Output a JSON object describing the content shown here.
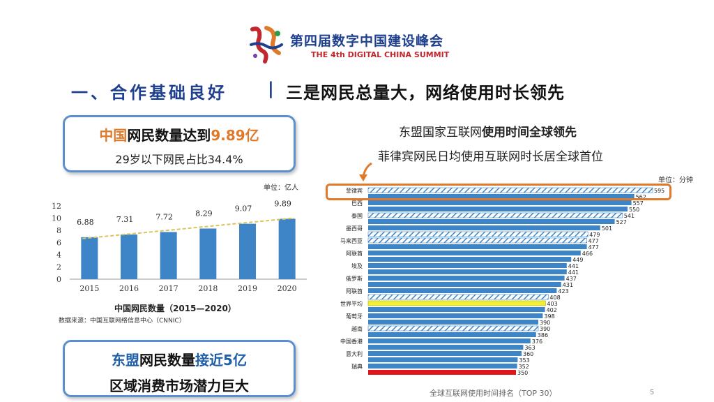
{
  "header": {
    "logo_name": "summit-logo",
    "title_cn": "第四届数字中国建设峰会",
    "title_en": "THE 4th DIGITAL CHINA SUMMIT"
  },
  "headline": {
    "section": "一、合作基础良好",
    "separator": "|",
    "topic": "三是网民总量大，网络使用时长领先"
  },
  "box_top": {
    "part1": "中国",
    "part2": "网民数量达到",
    "part3": "9.89亿",
    "line2": "29岁以下网民占比34.4%"
  },
  "box_bottom": {
    "part1": "东盟",
    "part2": "网民数量",
    "part3": "接近5亿",
    "line2": "区域消费市场潜力巨大"
  },
  "left_chart": {
    "unit": "单位：亿人",
    "title": "中国网民数量（2015—2020）",
    "source": "数据来源：中国互联网络信息中心（CNNIC）"
  },
  "right_panel": {
    "title_a": "东盟国家互联网",
    "title_b": "使用时间全球领先",
    "subtitle": "菲律宾网民日均使用互联网时长居全球首位",
    "unit": "单位：分钟",
    "footer": "全球互联网使用时间排名（TOP 30）",
    "page_number": "5"
  },
  "colors": {
    "blue": "#3d85c6",
    "hatch": "#3d85c6",
    "trend": "#d9c45a",
    "highlight": "#e07a2a",
    "world": "#f2ef3a",
    "last": "#e0161b"
  },
  "chart_data": [
    {
      "type": "bar",
      "categories": [
        "2015",
        "2016",
        "2017",
        "2018",
        "2019",
        "2020"
      ],
      "values": [
        6.88,
        7.31,
        7.72,
        8.29,
        9.07,
        9.89
      ],
      "ylim": [
        0,
        12
      ],
      "yticks": [
        0,
        2,
        4,
        6,
        8,
        10,
        12
      ],
      "trendline": true
    },
    {
      "type": "bar",
      "orientation": "horizontal",
      "unit": "分钟",
      "bars": [
        {
          "label": "菲律宾",
          "value": 595,
          "style": "hatch"
        },
        {
          "label": "",
          "value": 562,
          "style": "solid"
        },
        {
          "label": "巴西",
          "value": 557,
          "style": "solid"
        },
        {
          "label": "",
          "value": 550,
          "style": "solid"
        },
        {
          "label": "泰国",
          "value": 541,
          "style": "hatch"
        },
        {
          "label": "",
          "value": 527,
          "style": "solid"
        },
        {
          "label": "墨西哥",
          "value": 501,
          "style": "solid"
        },
        {
          "label": "",
          "value": 479,
          "style": "hatch"
        },
        {
          "label": "马来西亚",
          "value": 477,
          "style": "hatch"
        },
        {
          "label": "",
          "value": 477,
          "style": "solid"
        },
        {
          "label": "阿联酋",
          "value": 466,
          "style": "solid"
        },
        {
          "label": "",
          "value": 449,
          "style": "solid"
        },
        {
          "label": "埃及",
          "value": 441,
          "style": "solid"
        },
        {
          "label": "",
          "value": 441,
          "style": "solid"
        },
        {
          "label": "俄罗斯",
          "value": 437,
          "style": "solid"
        },
        {
          "label": "",
          "value": 431,
          "style": "solid"
        },
        {
          "label": "阿联酋",
          "value": 423,
          "style": "solid"
        },
        {
          "label": "",
          "value": 408,
          "style": "hatch"
        },
        {
          "label": "世界平均",
          "value": 403,
          "style": "world"
        },
        {
          "label": "",
          "value": 402,
          "style": "solid"
        },
        {
          "label": "葡萄牙",
          "value": 398,
          "style": "solid"
        },
        {
          "label": "",
          "value": 390,
          "style": "solid"
        },
        {
          "label": "越南",
          "value": 390,
          "style": "hatch"
        },
        {
          "label": "",
          "value": 386,
          "style": "solid"
        },
        {
          "label": "中国香港",
          "value": 376,
          "style": "solid"
        },
        {
          "label": "",
          "value": 363,
          "style": "solid"
        },
        {
          "label": "意大利",
          "value": 360,
          "style": "solid"
        },
        {
          "label": "",
          "value": 353,
          "style": "solid"
        },
        {
          "label": "瑞典",
          "value": 352,
          "style": "solid"
        },
        {
          "label": "",
          "value": 350,
          "style": "last"
        }
      ]
    }
  ]
}
